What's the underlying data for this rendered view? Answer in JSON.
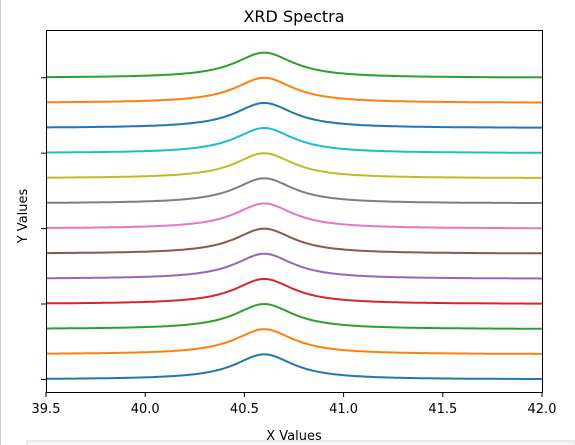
{
  "chart_data": {
    "type": "line",
    "title": "XRD Spectra",
    "xlabel": "X Values",
    "ylabel": "Y Values",
    "xlim": [
      39.5,
      42.0
    ],
    "x_ticks": [
      39.5,
      40.0,
      40.5,
      41.0,
      41.5,
      42.0
    ],
    "x_tick_labels": [
      "39.5",
      "40.0",
      "40.5",
      "41.0",
      "41.5",
      "42.0"
    ],
    "ylim": [
      -0.5,
      13.9
    ],
    "y_ticks": [
      0,
      3,
      6,
      9,
      12
    ],
    "grid": false,
    "legend": "none",
    "peak_center": 40.6,
    "peak_width": 0.18,
    "peak_height": 1.0,
    "offset_step": 1.0,
    "series": [
      {
        "offset": 0,
        "color": "#1f77b4"
      },
      {
        "offset": 1,
        "color": "#ff7f0e"
      },
      {
        "offset": 2,
        "color": "#2ca02c"
      },
      {
        "offset": 3,
        "color": "#d62728"
      },
      {
        "offset": 4,
        "color": "#9467bd"
      },
      {
        "offset": 5,
        "color": "#8c564b"
      },
      {
        "offset": 6,
        "color": "#e377c2"
      },
      {
        "offset": 7,
        "color": "#7f7f7f"
      },
      {
        "offset": 8,
        "color": "#bcbd22"
      },
      {
        "offset": 9,
        "color": "#17becf"
      },
      {
        "offset": 10,
        "color": "#1f77b4"
      },
      {
        "offset": 11,
        "color": "#ff7f0e"
      },
      {
        "offset": 12,
        "color": "#2ca02c"
      }
    ]
  }
}
